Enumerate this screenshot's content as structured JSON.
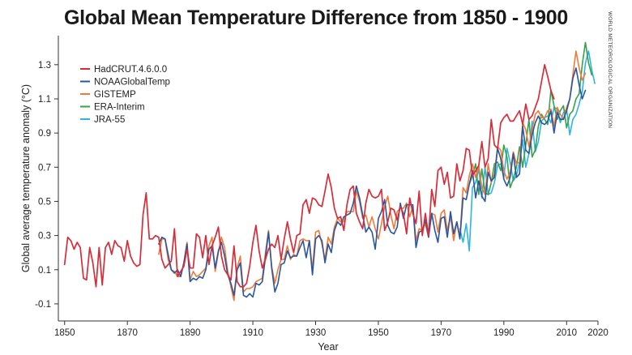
{
  "chart_data": {
    "type": "line",
    "title": "Global Mean Temperature Difference from 1850 - 1900",
    "source": "WORLD METEOROLOGICAL ORGANIZATION",
    "xlabel": "Year",
    "ylabel": "Global average temperature anomaly (°C)",
    "xlim": [
      1848,
      2020
    ],
    "ylim": [
      -0.2,
      1.47
    ],
    "xticks": [
      1850,
      1870,
      1890,
      1910,
      1930,
      1950,
      1970,
      1990,
      2010,
      2020
    ],
    "yticks": [
      -0.1,
      0.1,
      0.3,
      0.5,
      0.7,
      0.9,
      1.1,
      1.3
    ],
    "ytick_labels": [
      "-0.1",
      "0.1",
      "0.3",
      "0.5",
      "0.7",
      "0.9",
      "1.1",
      "1.3"
    ],
    "grid": false,
    "legend_position": "top-left",
    "series": [
      {
        "name": "HadCRUT.4.6.0.0",
        "color": "#d62d3b",
        "x_start": 1850,
        "values": [
          0.13,
          0.29,
          0.27,
          0.22,
          0.26,
          0.23,
          0.05,
          0.04,
          0.23,
          0.14,
          0.0,
          0.23,
          0.01,
          0.23,
          0.26,
          0.19,
          0.27,
          0.24,
          0.23,
          0.15,
          0.27,
          0.18,
          0.14,
          0.12,
          0.13,
          0.42,
          0.55,
          0.28,
          0.28,
          0.3,
          0.29,
          0.16,
          0.11,
          0.13,
          0.15,
          0.34,
          0.06,
          0.09,
          0.12,
          0.22,
          0.11,
          0.11,
          0.31,
          0.29,
          0.17,
          0.3,
          0.13,
          0.24,
          0.29,
          0.35,
          0.18,
          0.1,
          0.07,
          0.04,
          0.24,
          0.03,
          0.0,
          0.0,
          0.02,
          0.12,
          0.26,
          0.36,
          0.21,
          0.11,
          0.16,
          0.22,
          0.25,
          0.23,
          0.3,
          0.16,
          0.28,
          0.38,
          0.28,
          0.2,
          0.3,
          0.31,
          0.48,
          0.51,
          0.43,
          0.52,
          0.51,
          0.48,
          0.47,
          0.56,
          0.66,
          0.58,
          0.46,
          0.4,
          0.41,
          0.33,
          0.48,
          0.57,
          0.59,
          0.43,
          0.38,
          0.34,
          0.49,
          0.57,
          0.53,
          0.52,
          0.53,
          0.57,
          0.33,
          0.38,
          0.46,
          0.45,
          0.39,
          0.47,
          0.43,
          0.31,
          0.52,
          0.43,
          0.37,
          0.56,
          0.3,
          0.43,
          0.3,
          0.57,
          0.47,
          0.68,
          0.7,
          0.6,
          0.67,
          0.52,
          0.53,
          0.72,
          0.62,
          0.68,
          0.81,
          0.8,
          0.65,
          0.68,
          0.71,
          0.85,
          0.7,
          0.75,
          0.98,
          0.83,
          0.81,
          0.96,
          0.99,
          1.01,
          0.97,
          0.97,
          1.0,
          1.03,
          0.95,
          1.07,
          0.98,
          1.0,
          1.05,
          1.1,
          1.2,
          1.3,
          1.23,
          1.15,
          1.1
        ]
      },
      {
        "name": "NOAAGlobalTemp",
        "color": "#2a56a0",
        "x_start": 1880,
        "values": [
          0.25,
          0.29,
          0.28,
          0.19,
          0.1,
          0.08,
          0.1,
          0.06,
          0.14,
          0.25,
          0.03,
          0.05,
          0.04,
          0.06,
          0.05,
          0.1,
          0.22,
          0.24,
          0.11,
          0.21,
          0.26,
          0.18,
          0.07,
          0.02,
          -0.05,
          0.1,
          0.14,
          -0.05,
          -0.06,
          -0.04,
          -0.06,
          0.02,
          0.01,
          0.03,
          0.17,
          0.32,
          0.11,
          -0.03,
          0.02,
          0.13,
          0.14,
          0.21,
          0.17,
          0.18,
          0.18,
          0.23,
          0.27,
          0.17,
          0.27,
          0.07,
          0.28,
          0.3,
          0.27,
          0.14,
          0.25,
          0.2,
          0.33,
          0.38,
          0.36,
          0.41,
          0.42,
          0.43,
          0.49,
          0.59,
          0.52,
          0.42,
          0.32,
          0.35,
          0.32,
          0.22,
          0.4,
          0.44,
          0.51,
          0.36,
          0.32,
          0.31,
          0.35,
          0.49,
          0.4,
          0.48,
          0.48,
          0.48,
          0.23,
          0.32,
          0.33,
          0.39,
          0.29,
          0.43,
          0.33,
          0.26,
          0.4,
          0.41,
          0.29,
          0.44,
          0.31,
          0.38,
          0.28,
          0.52,
          0.51,
          0.6,
          0.68,
          0.52,
          0.62,
          0.53,
          0.5,
          0.67,
          0.62,
          0.64,
          0.81,
          0.75,
          0.63,
          0.59,
          0.64,
          0.78,
          0.64,
          0.66,
          0.94,
          0.8,
          0.78,
          0.89,
          0.96,
          1.0,
          0.96,
          0.95,
          0.97,
          1.03,
          0.9,
          1.02,
          0.98,
          0.98,
          1.03,
          1.1,
          1.22,
          1.28,
          1.18,
          1.1,
          1.15
        ]
      },
      {
        "name": "GISTEMP",
        "color": "#f07a3a",
        "x_start": 1880,
        "values": [
          0.19,
          0.28,
          0.28,
          0.16,
          0.1,
          0.09,
          0.06,
          0.06,
          0.14,
          0.26,
          0.04,
          0.09,
          0.06,
          0.07,
          0.09,
          0.11,
          0.24,
          0.29,
          0.09,
          0.2,
          0.29,
          0.23,
          0.09,
          0.0,
          -0.08,
          0.11,
          0.18,
          -0.03,
          -0.01,
          -0.01,
          0.0,
          0.03,
          0.04,
          0.05,
          0.2,
          0.33,
          0.12,
          0.02,
          0.1,
          0.16,
          0.16,
          0.24,
          0.16,
          0.19,
          0.18,
          0.27,
          0.28,
          0.27,
          0.27,
          0.1,
          0.32,
          0.33,
          0.25,
          0.16,
          0.29,
          0.25,
          0.35,
          0.4,
          0.38,
          0.38,
          0.44,
          0.44,
          0.44,
          0.56,
          0.5,
          0.4,
          0.42,
          0.35,
          0.41,
          0.34,
          0.28,
          0.37,
          0.47,
          0.53,
          0.42,
          0.34,
          0.44,
          0.46,
          0.46,
          0.49,
          0.41,
          0.47,
          0.27,
          0.34,
          0.33,
          0.37,
          0.29,
          0.43,
          0.42,
          0.32,
          0.43,
          0.45,
          0.33,
          0.41,
          0.27,
          0.38,
          0.29,
          0.58,
          0.55,
          0.65,
          0.72,
          0.64,
          0.71,
          0.58,
          0.54,
          0.72,
          0.61,
          0.66,
          0.82,
          0.8,
          0.68,
          0.63,
          0.67,
          0.79,
          0.72,
          0.73,
          0.96,
          0.92,
          0.82,
          0.92,
          1.01,
          1.03,
          0.99,
          0.99,
          1.03,
          1.04,
          0.94,
          1.05,
          1.01,
          0.98,
          1.05,
          1.1,
          1.24,
          1.38,
          1.28,
          1.21,
          1.25
        ]
      },
      {
        "name": "ERA-Interim",
        "color": "#3aa04a",
        "x_start": 1979,
        "values": [
          0.6,
          0.65,
          0.72,
          0.54,
          0.69,
          0.55,
          0.54,
          0.61,
          0.72,
          0.73,
          0.68,
          0.83,
          0.76,
          0.58,
          0.63,
          0.7,
          0.82,
          0.7,
          0.83,
          0.98,
          0.76,
          0.8,
          0.94,
          1.01,
          0.98,
          0.95,
          1.15,
          1.06,
          0.98,
          1.03,
          1.06,
          0.93,
          1.01,
          1.03,
          1.1,
          1.13,
          1.3,
          1.43,
          1.31,
          1.24
        ]
      },
      {
        "name": "JRA-55",
        "color": "#2fb4e0",
        "x_start": 1976,
        "values": [
          0.34,
          0.26,
          0.37,
          0.21,
          0.58,
          0.61,
          0.69,
          0.52,
          0.7,
          0.54,
          0.55,
          0.61,
          0.71,
          0.72,
          0.64,
          0.81,
          0.73,
          0.62,
          0.65,
          0.73,
          0.86,
          0.7,
          0.78,
          0.97,
          0.79,
          0.85,
          0.97,
          0.99,
          1.0,
          0.96,
          1.05,
          1.04,
          0.96,
          1.02,
          1.04,
          0.89,
          0.98,
          1.01,
          1.07,
          1.14,
          1.31,
          1.38,
          1.27,
          1.19
        ]
      }
    ]
  }
}
